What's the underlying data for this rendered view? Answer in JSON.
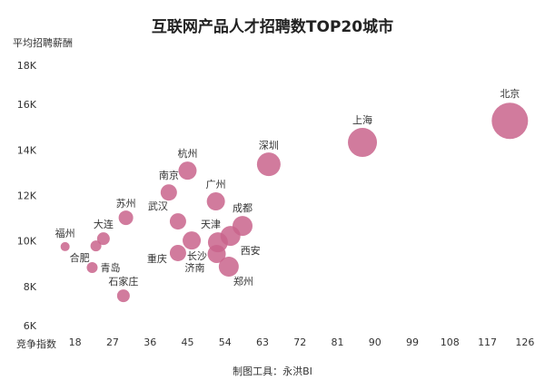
{
  "chart_data": {
    "type": "scatter",
    "title": "互联网产品人才招聘数TOP20城市",
    "x_label": "竞争指数",
    "y_label": "平均招聘薪酬",
    "footer": "制图工具：永洪BI",
    "color": "#c9648c",
    "xlim": [
      10,
      128
    ],
    "xticks": [
      18,
      27,
      36,
      45,
      54,
      63,
      72,
      81,
      90,
      99,
      108,
      117,
      126
    ],
    "ylim": [
      6000,
      18000
    ],
    "yticks": [
      {
        "value": 6000,
        "label": "6K"
      },
      {
        "value": 8000,
        "label": "8K"
      },
      {
        "value": 10000,
        "label": "10K"
      },
      {
        "value": 12000,
        "label": "12K"
      },
      {
        "value": 14000,
        "label": "14K"
      },
      {
        "value": 16000,
        "label": "16K"
      },
      {
        "value": 18000,
        "label": "18K"
      }
    ],
    "categories": [
      "北京",
      "上海",
      "深圳",
      "杭州",
      "南京",
      "广州",
      "武汉",
      "苏州",
      "成都",
      "天津",
      "大连",
      "福州",
      "合肥",
      "西安",
      "长沙",
      "重庆",
      "济南",
      "郑州",
      "青岛",
      "石家庄"
    ],
    "x": [
      122.4,
      87,
      64.5,
      45,
      40.5,
      51.8,
      42.7,
      30.2,
      58.2,
      46,
      24.8,
      15.6,
      23,
      55.3,
      52.3,
      42.7,
      52,
      54.9,
      22.1,
      29.6
    ],
    "values": [
      15320,
      14370,
      13410,
      13130,
      12170,
      11780,
      10900,
      11060,
      10700,
      10060,
      10140,
      9790,
      9820,
      10260,
      9980,
      9510,
      9470,
      8910,
      8870,
      7630
    ],
    "sizes": [
      400,
      256,
      169,
      100,
      81,
      100,
      81,
      64,
      121,
      100,
      49,
      25,
      36,
      121,
      121,
      81,
      100,
      121,
      36,
      49
    ]
  }
}
